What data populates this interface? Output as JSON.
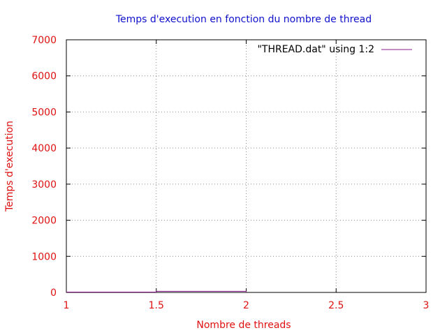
{
  "colors": {
    "title": "#1010cc",
    "axis_text": "#e01010",
    "series": "#8e1a8e",
    "grid": "#888888",
    "frame": "#000000",
    "background": "#ffffff"
  },
  "chart_data": {
    "type": "line",
    "title": "Temps d'execution en fonction du nombre de thread",
    "xlabel": "Nombre de threads",
    "ylabel": "Temps d'execution",
    "xlim": [
      1,
      3
    ],
    "ylim": [
      0,
      7000
    ],
    "xticks": [
      1,
      1.5,
      2,
      2.5,
      3
    ],
    "xtick_labels": [
      "1",
      "1.5",
      "2",
      "2.5",
      "3"
    ],
    "yticks": [
      0,
      1000,
      2000,
      3000,
      4000,
      5000,
      6000,
      7000
    ],
    "ytick_labels": [
      "0",
      "1000",
      "2000",
      "3000",
      "4000",
      "5000",
      "6000",
      "7000"
    ],
    "grid": true,
    "legend_position": "top-right",
    "series": [
      {
        "name": "\"THREAD.dat\" using 1:2",
        "x": [
          1,
          1.5,
          1.5,
          2,
          2
        ],
        "y": [
          10,
          10,
          30,
          30,
          0
        ]
      }
    ]
  }
}
